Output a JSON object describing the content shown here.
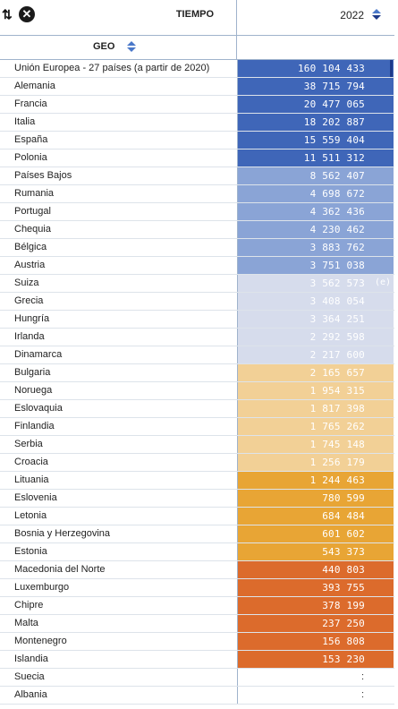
{
  "header": {
    "time_label": "TIEMPO",
    "year": "2022",
    "geo_label": "GEO"
  },
  "colors": {
    "c1": "#3f66b8",
    "c2": "#8aa4d6",
    "c3": "#d6dcec",
    "c4": "#f2d096",
    "c5": "#e8a535",
    "c6": "#dc6b2c"
  },
  "rows": [
    {
      "name": "Unión Europea - 27 países (a partir de 2020)",
      "value": "160 104 433",
      "flag": "",
      "cls": "c1"
    },
    {
      "name": "Alemania",
      "value": "38 715 794",
      "flag": "",
      "cls": "c1"
    },
    {
      "name": "Francia",
      "value": "20 477 065",
      "flag": "",
      "cls": "c1"
    },
    {
      "name": "Italia",
      "value": "18 202 887",
      "flag": "",
      "cls": "c1"
    },
    {
      "name": "España",
      "value": "15 559 404",
      "flag": "",
      "cls": "c1"
    },
    {
      "name": "Polonia",
      "value": "11 511 312",
      "flag": "",
      "cls": "c1"
    },
    {
      "name": "Países Bajos",
      "value": "8 562 407",
      "flag": "",
      "cls": "c2"
    },
    {
      "name": "Rumania",
      "value": "4 698 672",
      "flag": "",
      "cls": "c2"
    },
    {
      "name": "Portugal",
      "value": "4 362 436",
      "flag": "",
      "cls": "c2"
    },
    {
      "name": "Chequia",
      "value": "4 230 462",
      "flag": "",
      "cls": "c2"
    },
    {
      "name": "Bélgica",
      "value": "3 883 762",
      "flag": "",
      "cls": "c2"
    },
    {
      "name": "Austria",
      "value": "3 751 038",
      "flag": "",
      "cls": "c2"
    },
    {
      "name": "Suiza",
      "value": "3 562 573",
      "flag": "(e)",
      "cls": "c3"
    },
    {
      "name": "Grecia",
      "value": "3 408 054",
      "flag": "",
      "cls": "c3"
    },
    {
      "name": "Hungría",
      "value": "3 364 251",
      "flag": "",
      "cls": "c3"
    },
    {
      "name": "Irlanda",
      "value": "2 292 598",
      "flag": "",
      "cls": "c3"
    },
    {
      "name": "Dinamarca",
      "value": "2 217 600",
      "flag": "",
      "cls": "c3"
    },
    {
      "name": "Bulgaria",
      "value": "2 165 657",
      "flag": "",
      "cls": "c4"
    },
    {
      "name": "Noruega",
      "value": "1 954 315",
      "flag": "",
      "cls": "c4"
    },
    {
      "name": "Eslovaquia",
      "value": "1 817 398",
      "flag": "",
      "cls": "c4"
    },
    {
      "name": "Finlandia",
      "value": "1 765 262",
      "flag": "",
      "cls": "c4"
    },
    {
      "name": "Serbia",
      "value": "1 745 148",
      "flag": "",
      "cls": "c4"
    },
    {
      "name": "Croacia",
      "value": "1 256 179",
      "flag": "",
      "cls": "c4"
    },
    {
      "name": "Lituania",
      "value": "1 244 463",
      "flag": "",
      "cls": "c5"
    },
    {
      "name": "Eslovenia",
      "value": "780 599",
      "flag": "",
      "cls": "c5"
    },
    {
      "name": "Letonia",
      "value": "684 484",
      "flag": "",
      "cls": "c5"
    },
    {
      "name": "Bosnia y Herzegovina",
      "value": "601 602",
      "flag": "",
      "cls": "c5"
    },
    {
      "name": "Estonia",
      "value": "543 373",
      "flag": "",
      "cls": "c5"
    },
    {
      "name": "Macedonia del Norte",
      "value": "440 803",
      "flag": "",
      "cls": "c6"
    },
    {
      "name": "Luxemburgo",
      "value": "393 755",
      "flag": "",
      "cls": "c6"
    },
    {
      "name": "Chipre",
      "value": "378 199",
      "flag": "",
      "cls": "c6"
    },
    {
      "name": "Malta",
      "value": "237 250",
      "flag": "",
      "cls": "c6"
    },
    {
      "name": "Montenegro",
      "value": "156 808",
      "flag": "",
      "cls": "c6"
    },
    {
      "name": "Islandia",
      "value": "153 230",
      "flag": "",
      "cls": "c6"
    },
    {
      "name": "Suecia",
      "value": ":",
      "flag": "",
      "cls": "c0"
    },
    {
      "name": "Albania",
      "value": ":",
      "flag": "",
      "cls": "c0"
    }
  ]
}
